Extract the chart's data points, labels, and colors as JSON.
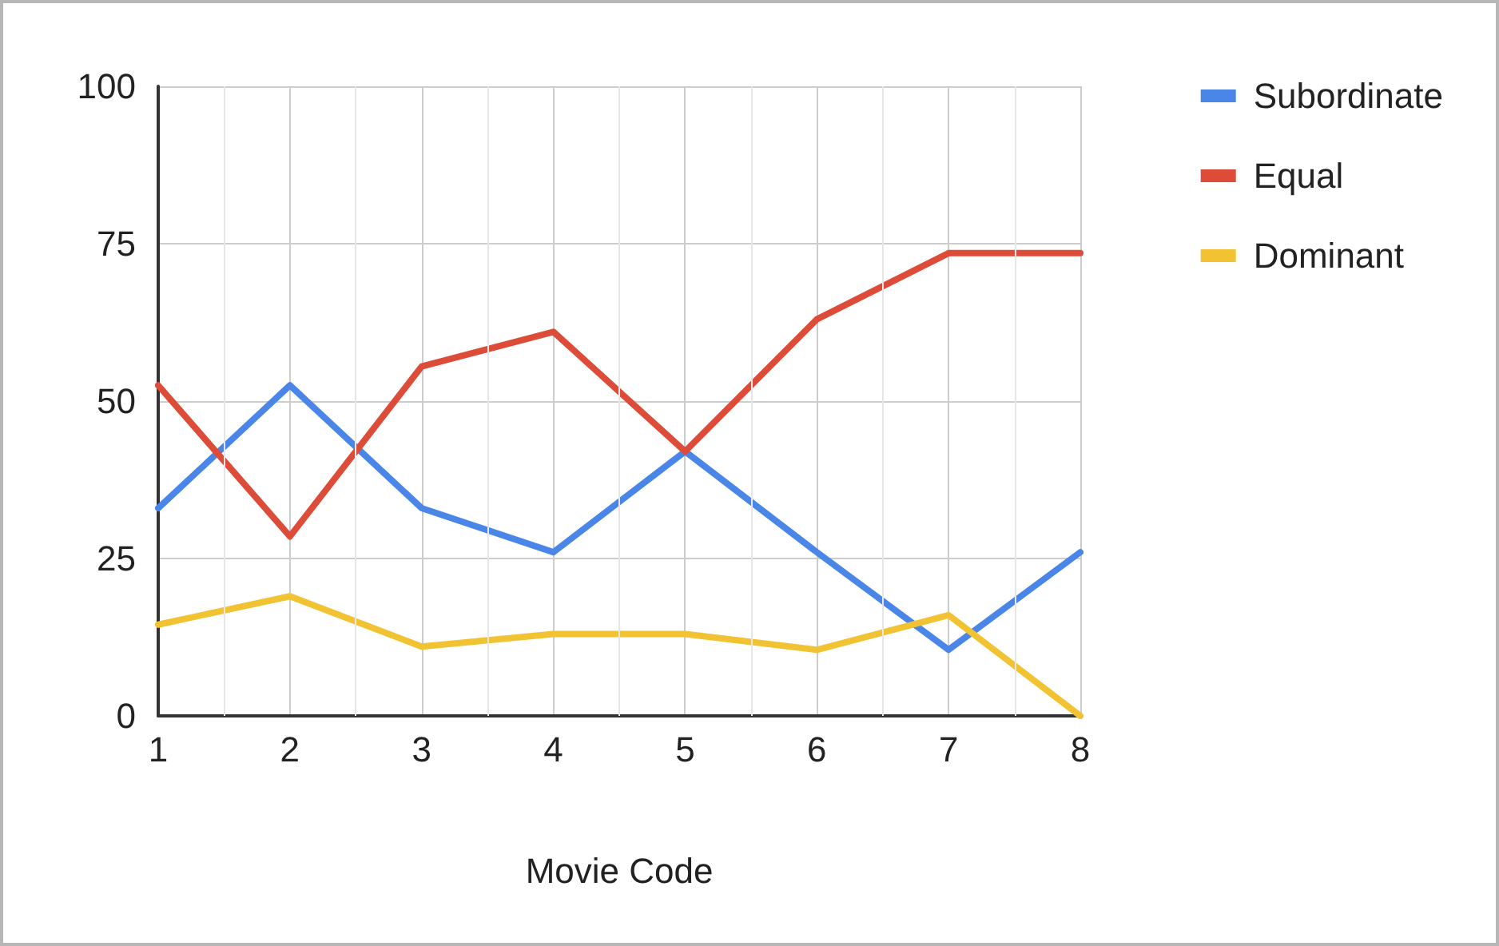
{
  "chart_data": {
    "type": "line",
    "xlabel": "Movie Code",
    "x": [
      1,
      2,
      3,
      4,
      5,
      6,
      7,
      8
    ],
    "series": [
      {
        "name": "Subordinate",
        "color": "#4a86e8",
        "values": [
          33,
          52.5,
          33,
          26,
          42,
          26,
          10.5,
          26
        ]
      },
      {
        "name": "Equal",
        "color": "#dd4b39",
        "values": [
          52.5,
          28.5,
          55.5,
          61,
          42,
          63,
          73.5,
          73.5
        ]
      },
      {
        "name": "Dominant",
        "color": "#f1c232",
        "values": [
          14.5,
          19,
          11,
          13,
          13,
          10.5,
          16,
          0
        ]
      }
    ],
    "xlim": [
      1,
      8
    ],
    "xticks": [
      1,
      2,
      3,
      4,
      5,
      6,
      7,
      8
    ],
    "ylim": [
      0,
      100
    ],
    "yticks": [
      0,
      25,
      50,
      75,
      100
    ],
    "grid": true,
    "legend": "top right",
    "marker": "none",
    "line_style": "solid"
  }
}
